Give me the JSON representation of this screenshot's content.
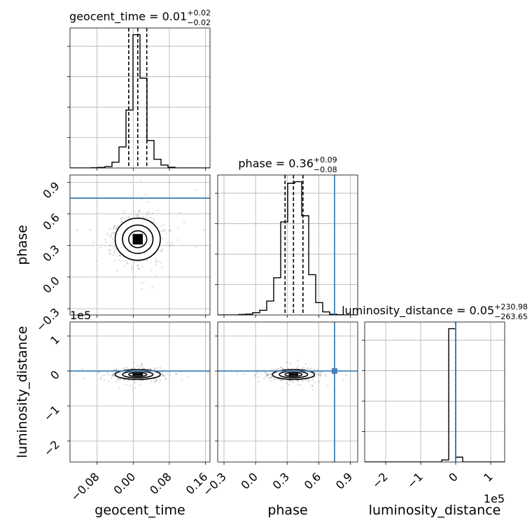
{
  "chart_data": {
    "type": "corner",
    "parameters": [
      "geocent_time",
      "phase",
      "luminosity_distance"
    ],
    "offset_text": "1e5",
    "truth_color": "#4682b4",
    "truths": {
      "phase": 0.75,
      "luminosity_distance": 0
    },
    "ranges": {
      "geocent_time": [
        -0.14,
        0.17
      ],
      "phase": [
        -0.36,
        0.97
      ],
      "luminosity_distance": [
        -2.6,
        1.4
      ]
    },
    "ticks": {
      "geocent_time": {
        "values": [
          -0.08,
          0.0,
          0.08,
          0.16
        ],
        "labels": [
          "−0.08",
          "0.00",
          "0.08",
          "0.16"
        ]
      },
      "phase": {
        "values": [
          -0.3,
          0.0,
          0.3,
          0.6,
          0.9
        ],
        "labels": [
          "−0.3",
          "0.0",
          "0.3",
          "0.6",
          "0.9"
        ]
      },
      "luminosity_distance": {
        "values": [
          -2,
          -1,
          0,
          1
        ],
        "labels": [
          "−2",
          "−1",
          "0",
          "1"
        ]
      }
    },
    "titles": [
      {
        "param": "geocent_time",
        "text": "geocent_time = 0.01",
        "sup": "+0.02",
        "sub": "−0.02"
      },
      {
        "param": "phase",
        "text": "phase = 0.36",
        "sup": "+0.09",
        "sub": "−0.08"
      },
      {
        "param": "luminosity_distance",
        "text": "luminosity_distance = 0.05",
        "sup": "+230.98",
        "sub": "−263.65"
      }
    ],
    "histograms": {
      "geocent_time": {
        "edges": [
          -0.14,
          -0.1245,
          -0.109,
          -0.0935,
          -0.078,
          -0.0625,
          -0.047,
          -0.0315,
          -0.016,
          -0.0005,
          0.015,
          0.0305,
          0.046,
          0.0615,
          0.077,
          0.0925,
          0.108,
          0.1235,
          0.139,
          0.1545,
          0.17
        ],
        "counts": [
          0,
          0,
          0,
          0.2,
          0.4,
          1.0,
          4.0,
          14.5,
          40.0,
          92.0,
          62.0,
          19.0,
          6.0,
          2.0,
          0.5,
          0,
          0,
          0,
          0,
          0
        ],
        "quantiles": [
          -0.01,
          0.01,
          0.03
        ]
      },
      "phase": {
        "edges": [
          -0.36,
          -0.2935,
          -0.227,
          -0.1605,
          -0.094,
          -0.0275,
          0.039,
          0.1055,
          0.172,
          0.2385,
          0.305,
          0.3715,
          0.438,
          0.5045,
          0.571,
          0.6375,
          0.704,
          0.7705,
          0.837,
          0.9035,
          0.97
        ],
        "counts": [
          0,
          0,
          0,
          0.3,
          0.6,
          1.5,
          3.0,
          9.0,
          24.0,
          60.0,
          85.0,
          86.0,
          64.0,
          26.0,
          8.0,
          2.0,
          0.5,
          0.2,
          0,
          0
        ],
        "quantiles": [
          0.28,
          0.36,
          0.45
        ]
      },
      "luminosity_distance": {
        "edges": [
          -2.6,
          -2.4,
          -2.2,
          -2.0,
          -1.8,
          -1.6,
          -1.4,
          -1.2,
          -1.0,
          -0.8,
          -0.6,
          -0.4,
          -0.2,
          0.0,
          0.2,
          0.4,
          0.6,
          0.8,
          1.0,
          1.2,
          1.4
        ],
        "counts": [
          0,
          0,
          0,
          0,
          0,
          0,
          0,
          0,
          0,
          0,
          0,
          1.5,
          97.0,
          3.5,
          0,
          0,
          0,
          0,
          0,
          0
        ],
        "quantiles": [
          -0.0026,
          5e-07,
          0.0023
        ]
      }
    },
    "scatter_2d": [
      {
        "x": "geocent_time",
        "y": "phase",
        "center": [
          0.01,
          0.36
        ],
        "spread": [
          0.025,
          0.1
        ],
        "contours": true
      },
      {
        "x": "geocent_time",
        "y": "luminosity_distance",
        "center": [
          0.01,
          -0.1
        ],
        "spread": [
          0.025,
          0.07
        ],
        "contours": true
      },
      {
        "x": "phase",
        "y": "luminosity_distance",
        "center": [
          0.36,
          -0.1
        ],
        "spread": [
          0.1,
          0.07
        ],
        "contours": true
      }
    ],
    "grid": true
  }
}
